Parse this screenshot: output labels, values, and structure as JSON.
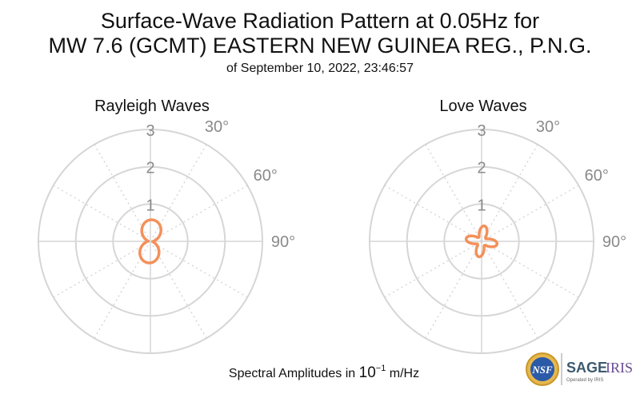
{
  "header": {
    "title_line1": "Surface-Wave Radiation Pattern at 0.05Hz for",
    "title_line2": "MW 7.6 (GCMT) EASTERN NEW GUINEA REG., P.N.G.",
    "subtitle": "of September 10, 2022, 23:46:57"
  },
  "footer": {
    "caption_prefix": "Spectral Amplitudes in ",
    "caption_base": "10",
    "caption_exp": "−1",
    "caption_suffix": " m/Hz"
  },
  "logos": {
    "nsf_text": "NSF",
    "sage_text": "SAGE",
    "iris_text": "IRIS",
    "operated_text": "Operated by IRIS"
  },
  "colors": {
    "pattern": "#f4905a",
    "grid": "#d6d6d6",
    "tick_text": "#8a8a8a"
  },
  "chart_data": [
    {
      "type": "polar-line",
      "title": "Rayleigh Waves",
      "radial_ticks": [
        "1",
        "2",
        "3"
      ],
      "radial_max": 3,
      "angle_ticks": [
        "30°",
        "60°",
        "90°"
      ],
      "angle_tick_values": [
        30,
        60,
        90
      ],
      "angle_zero": "north",
      "angle_direction": "clockwise",
      "pattern": {
        "form": "two-lobe",
        "lobe_axis_deg": 5,
        "max_amplitude": 0.58,
        "min_amplitude": 0.06
      }
    },
    {
      "type": "polar-line",
      "title": "Love Waves",
      "radial_ticks": [
        "1",
        "2",
        "3"
      ],
      "radial_max": 3,
      "angle_ticks": [
        "30°",
        "60°",
        "90°"
      ],
      "angle_tick_values": [
        30,
        60,
        90
      ],
      "angle_zero": "north",
      "angle_direction": "clockwise",
      "pattern": {
        "form": "four-lobe",
        "lobe_axis_deg": 10,
        "max_amplitude": 0.42,
        "min_amplitude": 0.13
      }
    }
  ]
}
